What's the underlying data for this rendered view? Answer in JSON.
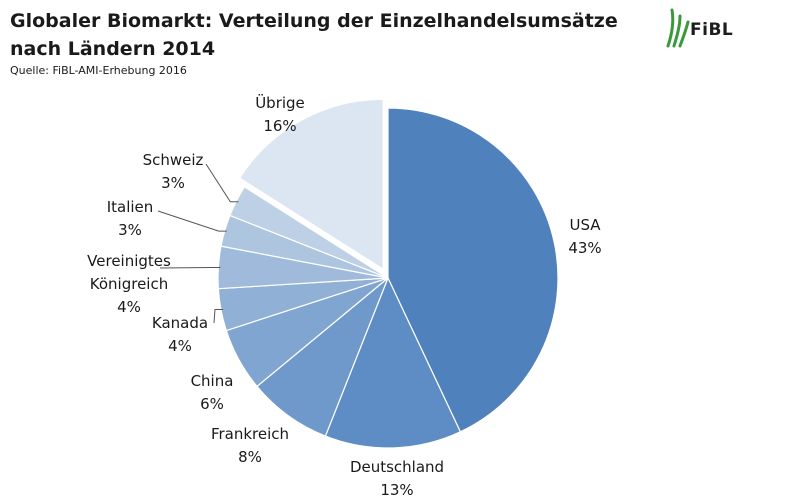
{
  "header": {
    "title": "Globaler Biomarkt: Verteilung der Einzelhandelsumsätze nach Ländern 2014",
    "source": "Quelle: FiBL-AMI-Erhebung 2016",
    "logo_text": "FiBL"
  },
  "colors": {
    "usa": "#4f81bd",
    "deutschland": "#5e8cc4",
    "frankreich": "#6f98cb",
    "china": "#80a5d1",
    "kanada": "#90b0d5",
    "vereinigtes_koenigreich": "#9fbadb",
    "italien": "#aec5e0",
    "schweiz": "#bdd0e6",
    "uebrige": "#dce6f2",
    "logo_green": "#3a9a3a"
  },
  "chart_data": {
    "type": "pie",
    "title": "Globaler Biomarkt: Verteilung der Einzelhandelsumsätze nach Ländern 2014",
    "subtitle": "Quelle: FiBL-AMI-Erhebung 2016",
    "unit": "%",
    "categories": [
      "USA",
      "Deutschland",
      "Frankreich",
      "China",
      "Kanada",
      "Vereinigtes Königreich",
      "Italien",
      "Schweiz",
      "Übrige"
    ],
    "values": [
      43,
      13,
      8,
      6,
      4,
      4,
      3,
      3,
      16
    ],
    "labels": [
      {
        "lines": [
          "USA"
        ],
        "pct": "43%"
      },
      {
        "lines": [
          "Deutschland"
        ],
        "pct": "13%"
      },
      {
        "lines": [
          "Frankreich"
        ],
        "pct": "8%"
      },
      {
        "lines": [
          "China"
        ],
        "pct": "6%"
      },
      {
        "lines": [
          "Kanada"
        ],
        "pct": "4%"
      },
      {
        "lines": [
          "Vereinigtes",
          "Königreich"
        ],
        "pct": "4%"
      },
      {
        "lines": [
          "Italien"
        ],
        "pct": "3%"
      },
      {
        "lines": [
          "Schweiz"
        ],
        "pct": "3%"
      },
      {
        "lines": [
          "Übrige"
        ],
        "pct": "16%"
      }
    ],
    "start_angle": "12 o'clock",
    "direction": "clockwise",
    "exploded_slice": "Übrige"
  }
}
